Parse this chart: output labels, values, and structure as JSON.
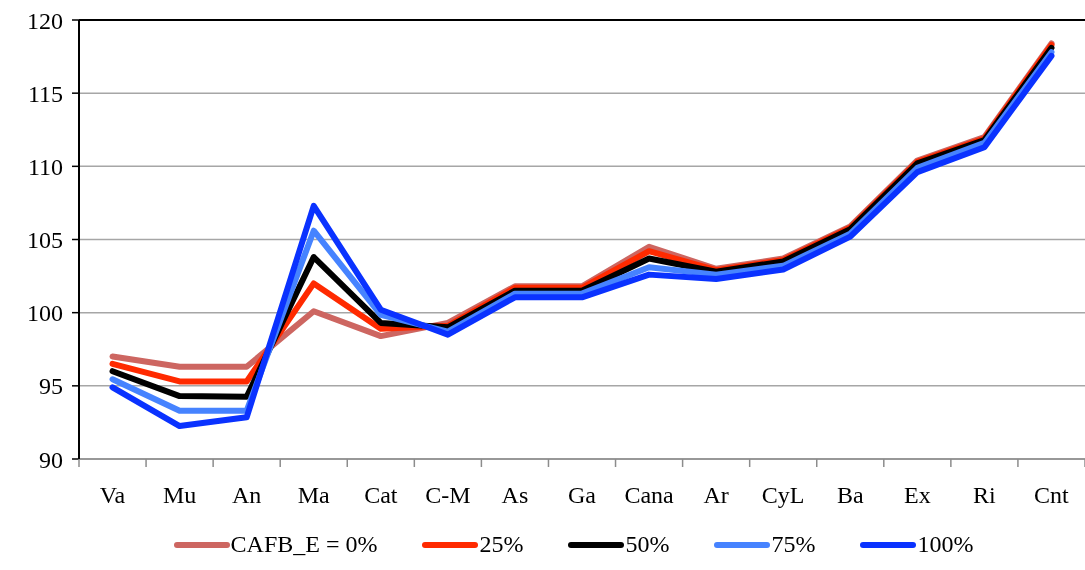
{
  "chart_data": {
    "type": "line",
    "categories": [
      "Va",
      "Mu",
      "An",
      "Ma",
      "Cat",
      "C-M",
      "As",
      "Ga",
      "Cana",
      "Ar",
      "CyL",
      "Ba",
      "Ex",
      "Ri",
      "Cnt"
    ],
    "series": [
      {
        "name": "CAFB_E = 0%",
        "color": "#cd6661",
        "values": [
          97.0,
          96.3,
          96.3,
          100.1,
          98.4,
          99.3,
          101.8,
          101.8,
          104.5,
          103.0,
          103.7,
          105.9,
          110.4,
          112.0,
          118.4
        ]
      },
      {
        "name": "25%",
        "color": "#ff2a00",
        "values": [
          96.5,
          95.3,
          95.3,
          102.0,
          98.9,
          99.1,
          101.7,
          101.7,
          104.2,
          102.9,
          103.6,
          105.8,
          110.3,
          111.9,
          118.3
        ]
      },
      {
        "name": "50%",
        "color": "#000000",
        "values": [
          96.0,
          94.3,
          94.25,
          103.8,
          99.3,
          99.0,
          101.5,
          101.5,
          103.7,
          102.8,
          103.5,
          105.7,
          110.2,
          111.8,
          118.1
        ]
      },
      {
        "name": "75%",
        "color": "#4683ff",
        "values": [
          95.45,
          93.3,
          93.3,
          105.6,
          99.85,
          98.7,
          101.3,
          101.3,
          103.1,
          102.6,
          103.2,
          105.4,
          109.9,
          111.6,
          117.8
        ]
      },
      {
        "name": "100%",
        "color": "#0a32ff",
        "values": [
          94.9,
          92.25,
          92.85,
          107.3,
          100.2,
          98.5,
          101.05,
          101.05,
          102.6,
          102.3,
          102.95,
          105.2,
          109.6,
          111.3,
          117.55
        ]
      }
    ],
    "ylim": [
      90,
      120
    ],
    "yticks": [
      90,
      95,
      100,
      105,
      110,
      115,
      120
    ],
    "grid": "y",
    "legend": "bottom",
    "marker": "none",
    "line_style": "solid"
  }
}
